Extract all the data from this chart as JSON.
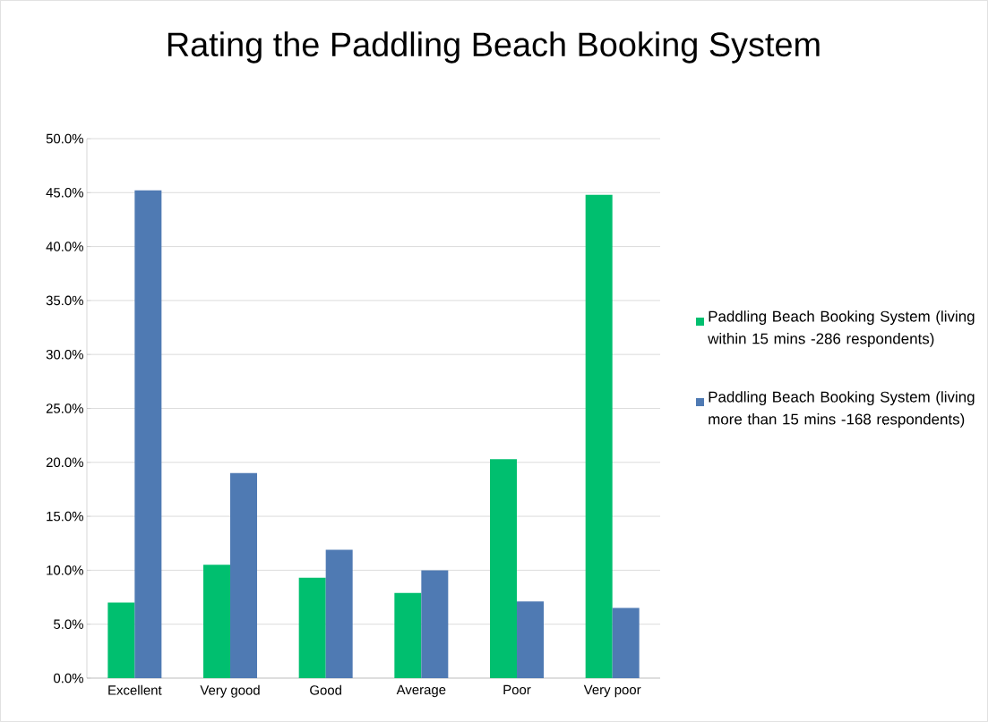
{
  "chart_data": {
    "type": "bar",
    "title": "Rating the Paddling Beach Booking System",
    "categories": [
      "Excellent",
      "Very good",
      "Good",
      "Average",
      "Poor",
      "Very poor"
    ],
    "series": [
      {
        "name": "Paddling Beach Booking System (living within 15 mins  -286 respondents)",
        "color": "#00bf6f",
        "values": [
          7.0,
          10.5,
          9.3,
          7.9,
          20.3,
          44.8
        ]
      },
      {
        "name": "Paddling Beach Booking System (living more than 15 mins  -168 respondents)",
        "color": "#4f7ab3",
        "values": [
          45.2,
          19.0,
          11.9,
          10.0,
          7.1,
          6.5
        ]
      }
    ],
    "ylim": [
      0,
      50
    ],
    "yticks": [
      {
        "value": 0,
        "label": "0.0%"
      },
      {
        "value": 5,
        "label": "5.0%"
      },
      {
        "value": 10,
        "label": "10.0%"
      },
      {
        "value": 15,
        "label": "15.0%"
      },
      {
        "value": 20,
        "label": "20.0%"
      },
      {
        "value": 25,
        "label": "25.0%"
      },
      {
        "value": 30,
        "label": "30.0%"
      },
      {
        "value": 35,
        "label": "35.0%"
      },
      {
        "value": 40,
        "label": "40.0%"
      },
      {
        "value": 45,
        "label": "45.0%"
      },
      {
        "value": 50,
        "label": "50.0%"
      }
    ],
    "grid": "y",
    "legend": "right"
  }
}
